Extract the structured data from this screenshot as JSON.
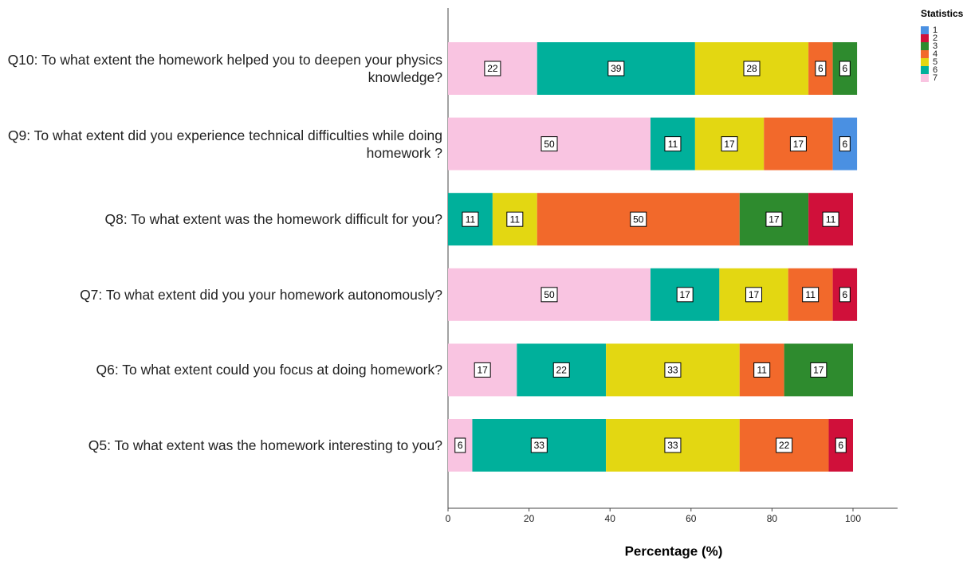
{
  "chart_data": {
    "type": "stacked_barh",
    "categories": [
      "Q10: To what extent the homework helped you to deepen your physics knowledge?",
      "Q9: To what extent did you experience technical difficulties while doing homework ?",
      "Q8: To what extent was the homework difficult for you?",
      "Q7: To what extent did you your homework autonomously?",
      "Q6: To what extent could you focus at doing homework?",
      "Q5: To what extent was the homework interesting to you?"
    ],
    "legend_title": "Statistics",
    "series": [
      {
        "name": "1",
        "color": "#4a90e2",
        "values": [
          null,
          6,
          null,
          null,
          null,
          null
        ]
      },
      {
        "name": "2",
        "color": "#d0103a",
        "values": [
          null,
          null,
          11,
          6,
          null,
          6
        ]
      },
      {
        "name": "3",
        "color": "#2e8b2e",
        "values": [
          6,
          null,
          17,
          null,
          17,
          null
        ]
      },
      {
        "name": "4",
        "color": "#f2692b",
        "values": [
          6,
          17,
          50,
          11,
          11,
          22
        ]
      },
      {
        "name": "5",
        "color": "#e3d712",
        "values": [
          28,
          17,
          11,
          17,
          33,
          33
        ]
      },
      {
        "name": "6",
        "color": "#00b09b",
        "values": [
          39,
          11,
          11,
          17,
          22,
          33
        ]
      },
      {
        "name": "7",
        "color": "#f9c4e1",
        "values": [
          22,
          50,
          null,
          50,
          17,
          6
        ]
      }
    ],
    "xlabel": "Percentage (%)",
    "xlim": [
      0,
      111
    ],
    "xticks": [
      0,
      20,
      40,
      60,
      80,
      100
    ]
  }
}
